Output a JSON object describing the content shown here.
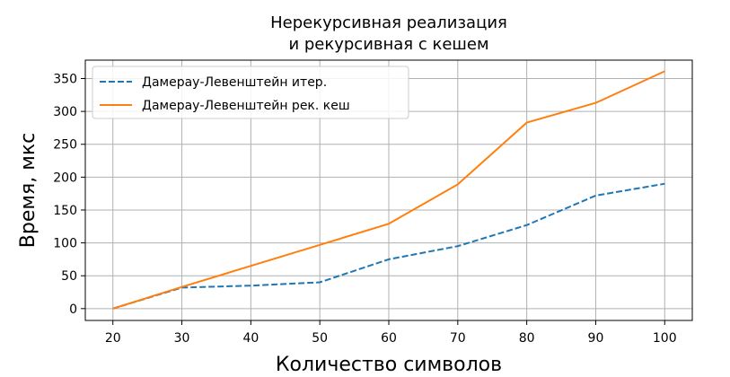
{
  "chart_data": {
    "type": "line",
    "title_lines": [
      "Нерекурсивная реализация",
      "и рекурсивная с кешем"
    ],
    "xlabel": "Количество символов",
    "ylabel": "Время, мкс",
    "x": [
      20,
      30,
      40,
      50,
      60,
      70,
      80,
      90,
      100
    ],
    "xticks": [
      20,
      30,
      40,
      50,
      60,
      70,
      80,
      90,
      100
    ],
    "yticks": [
      0,
      50,
      100,
      150,
      200,
      250,
      300,
      350
    ],
    "xlim": [
      16,
      104
    ],
    "ylim": [
      -18,
      378
    ],
    "grid": true,
    "legend_position": "top-left",
    "series": [
      {
        "name": "Дамерау-Левенштейн итер.",
        "color": "#1f77b4",
        "dash": "dashed",
        "values": [
          0,
          32,
          35,
          40,
          75,
          95,
          127,
          172,
          190
        ]
      },
      {
        "name": "Дамерау-Левенштейн рек. кеш",
        "color": "#ff7f0e",
        "dash": "solid",
        "values": [
          0,
          33,
          65,
          97,
          129,
          189,
          283,
          313,
          361
        ]
      }
    ]
  }
}
